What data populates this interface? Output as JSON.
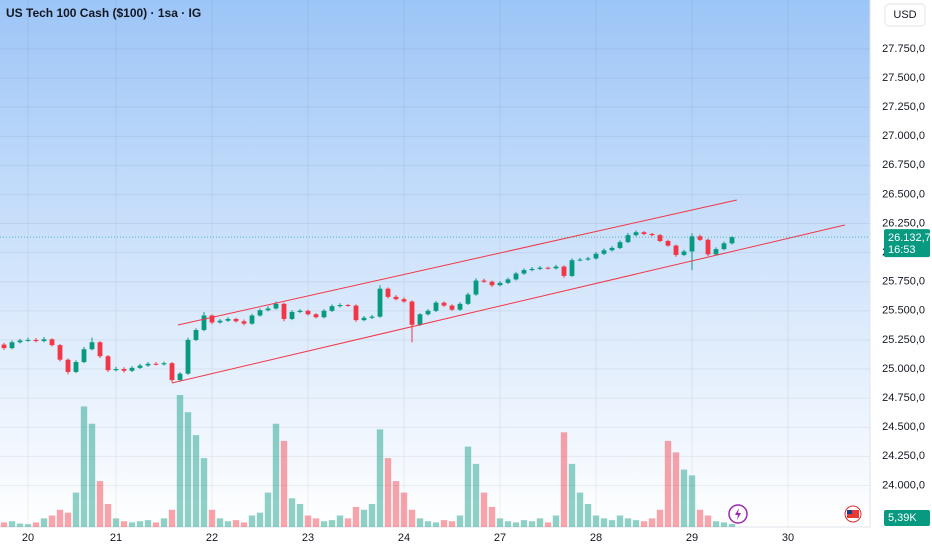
{
  "header": {
    "title": "US Tech 100 Cash ($100) · 1sa · IG",
    "currency": "USD"
  },
  "chart_data": {
    "type": "candlestick",
    "open": [
      25210,
      25180,
      25230,
      25245,
      25250,
      25240,
      25255,
      25205,
      25080,
      24975,
      25060,
      25170,
      25230,
      25110,
      24990,
      25000,
      24985,
      25010,
      25030,
      25045,
      25040,
      25050,
      24905,
      24960,
      25250,
      25335,
      25460,
      25400,
      25415,
      25430,
      25410,
      25390,
      25460,
      25505,
      25520,
      25560,
      25430,
      25490,
      25500,
      25470,
      25445,
      25500,
      25540,
      25550,
      25545,
      25420,
      25440,
      25450,
      25690,
      25620,
      25600,
      25580,
      25380,
      25470,
      25500,
      25570,
      25545,
      25510,
      25560,
      25640,
      25760,
      25750,
      25720,
      25740,
      25770,
      25820,
      25850,
      25860,
      25870,
      25865,
      25880,
      25800,
      25935,
      25940,
      25950,
      25990,
      26020,
      26040,
      26090,
      26150,
      26175,
      26160,
      26150,
      26100,
      26060,
      25980,
      26010,
      26140,
      26110,
      25985,
      26030,
      26080
    ],
    "high": [
      25225,
      25245,
      25260,
      25270,
      25265,
      25275,
      25265,
      25215,
      25090,
      25075,
      25190,
      25270,
      25240,
      25120,
      25020,
      25015,
      25025,
      25045,
      25060,
      25060,
      25065,
      25060,
      24975,
      25270,
      25350,
      25490,
      25470,
      25430,
      25445,
      25440,
      25425,
      25475,
      25520,
      25540,
      25580,
      25570,
      25505,
      25515,
      25510,
      25480,
      25515,
      25555,
      25565,
      25560,
      25555,
      25455,
      25465,
      25720,
      25700,
      25635,
      25615,
      25590,
      25480,
      25515,
      25585,
      25580,
      25555,
      25575,
      25655,
      25780,
      25775,
      25760,
      25755,
      25785,
      25835,
      25865,
      25875,
      25885,
      25880,
      25895,
      25890,
      25950,
      25955,
      25965,
      26005,
      26035,
      26055,
      26105,
      26170,
      26190,
      26185,
      26170,
      26160,
      26110,
      26070,
      26025,
      26165,
      26155,
      26120,
      26045,
      26095,
      26140
    ],
    "low": [
      25165,
      25170,
      25220,
      25235,
      25230,
      25230,
      25195,
      25065,
      24955,
      24965,
      25050,
      25160,
      25095,
      24975,
      24980,
      24970,
      24975,
      25000,
      25020,
      25030,
      25030,
      24885,
      24895,
      24950,
      25240,
      25325,
      25385,
      25390,
      25405,
      25400,
      25375,
      25380,
      25450,
      25495,
      25510,
      25410,
      25420,
      25480,
      25460,
      25435,
      25435,
      25490,
      25530,
      25535,
      25405,
      25410,
      25430,
      25440,
      25605,
      25590,
      25570,
      25230,
      25370,
      25460,
      25490,
      25535,
      25500,
      25500,
      25550,
      25630,
      25740,
      25705,
      25710,
      25730,
      25760,
      25810,
      25840,
      25850,
      25855,
      25855,
      25785,
      25790,
      25925,
      25930,
      25940,
      25980,
      26010,
      26030,
      26080,
      26140,
      26150,
      26140,
      26090,
      26050,
      25965,
      25970,
      25850,
      26100,
      25970,
      25975,
      26020,
      26070
    ],
    "close": [
      25180,
      25230,
      25245,
      25250,
      25240,
      25255,
      25205,
      25080,
      24975,
      25060,
      25170,
      25230,
      25110,
      24990,
      25000,
      24985,
      25010,
      25030,
      25045,
      25040,
      25050,
      24905,
      24960,
      25250,
      25335,
      25460,
      25400,
      25415,
      25430,
      25410,
      25390,
      25460,
      25505,
      25520,
      25560,
      25430,
      25490,
      25500,
      25470,
      25445,
      25500,
      25540,
      25550,
      25545,
      25420,
      25440,
      25450,
      25690,
      25620,
      25600,
      25580,
      25380,
      25470,
      25500,
      25570,
      25545,
      25510,
      25560,
      25640,
      25760,
      25750,
      25720,
      25740,
      25770,
      25820,
      25850,
      25860,
      25870,
      25865,
      25880,
      25800,
      25935,
      25940,
      25950,
      25990,
      26020,
      26040,
      26090,
      26150,
      26175,
      26160,
      26150,
      26100,
      26060,
      25980,
      26010,
      26140,
      26110,
      25985,
      26030,
      26080,
      26132.7
    ],
    "volume": [
      8,
      10,
      6,
      5,
      8,
      15,
      20,
      30,
      25,
      60,
      210,
      180,
      80,
      40,
      15,
      10,
      8,
      10,
      12,
      8,
      15,
      30,
      230,
      200,
      160,
      120,
      30,
      15,
      10,
      12,
      8,
      20,
      25,
      60,
      180,
      150,
      50,
      40,
      20,
      15,
      10,
      12,
      20,
      15,
      35,
      30,
      40,
      170,
      120,
      80,
      60,
      30,
      15,
      10,
      8,
      12,
      10,
      20,
      140,
      110,
      60,
      35,
      15,
      10,
      8,
      12,
      10,
      15,
      8,
      20,
      165,
      110,
      60,
      40,
      20,
      15,
      12,
      20,
      15,
      12,
      10,
      15,
      30,
      150,
      130,
      100,
      90,
      30,
      20,
      10,
      8,
      5.39
    ],
    "last_close_label": "26.132,7",
    "countdown": "16:53",
    "last_volume_label": "5,39K",
    "up_color": "#089981",
    "down_color": "#f23645",
    "trendline_color": "#f23645",
    "xlim": [
      -0.5,
      108.25
    ],
    "xticks": [
      {
        "value": 3,
        "label": "20"
      },
      {
        "value": 14,
        "label": "21"
      },
      {
        "value": 26,
        "label": "22"
      },
      {
        "value": 38,
        "label": "23"
      },
      {
        "value": 50,
        "label": "24"
      },
      {
        "value": 62,
        "label": "27"
      },
      {
        "value": 74,
        "label": "28"
      },
      {
        "value": 86,
        "label": "29"
      },
      {
        "value": 98,
        "label": "30"
      }
    ],
    "ylim": [
      23643,
      28170
    ],
    "yticks": [
      {
        "value": 24000,
        "label": "24.000,0"
      },
      {
        "value": 24250,
        "label": "24.250,0"
      },
      {
        "value": 24500,
        "label": "24.500,0"
      },
      {
        "value": 24750,
        "label": "24.750,0"
      },
      {
        "value": 25000,
        "label": "25.000,0"
      },
      {
        "value": 25250,
        "label": "25.250,0"
      },
      {
        "value": 25500,
        "label": "25.500,0"
      },
      {
        "value": 25750,
        "label": "25.750,0"
      },
      {
        "value": 26000,
        "label": "26.000,0"
      },
      {
        "value": 26250,
        "label": "26.250,0"
      },
      {
        "value": 26500,
        "label": "26.500,0"
      },
      {
        "value": 26750,
        "label": "26.750,0"
      },
      {
        "value": 27000,
        "label": "27.000,0"
      },
      {
        "value": 27250,
        "label": "27.250,0"
      },
      {
        "value": 27500,
        "label": "27.500,0"
      },
      {
        "value": 27750,
        "label": "27.750,0"
      }
    ],
    "grid": true,
    "trendlines": [
      {
        "x": [
          21.75,
          91.6
        ],
        "y": [
          25378,
          26452
        ]
      },
      {
        "x": [
          21,
          105.1
        ],
        "y": [
          24880,
          26237
        ]
      }
    ]
  }
}
